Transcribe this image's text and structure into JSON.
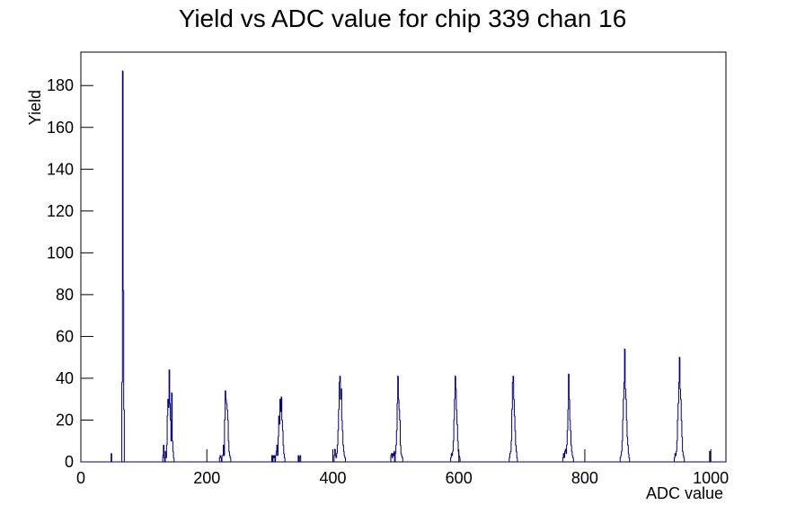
{
  "chart_data": {
    "type": "histogram",
    "title": "Yield vs ADC value for chip 339 chan 16",
    "x_label": "ADC value",
    "y_label": "Yield",
    "color": "#000080",
    "bins": [
      0,
      48,
      49,
      65,
      66,
      67,
      68,
      69,
      130,
      131,
      132,
      133,
      134,
      135,
      136,
      137,
      138,
      139,
      140,
      141,
      142,
      143,
      144,
      145,
      146,
      147,
      148,
      220,
      221,
      222,
      223,
      224,
      225,
      226,
      227,
      228,
      229,
      230,
      231,
      232,
      233,
      234,
      235,
      236,
      237,
      238,
      303,
      304,
      305,
      306,
      307,
      308,
      309,
      310,
      311,
      312,
      313,
      314,
      315,
      316,
      317,
      318,
      319,
      320,
      321,
      322,
      323,
      324,
      345,
      346,
      347,
      348,
      349,
      402,
      403,
      404,
      405,
      406,
      407,
      408,
      409,
      410,
      411,
      412,
      413,
      414,
      415,
      416,
      417,
      418,
      419,
      420,
      492,
      493,
      494,
      495,
      496,
      497,
      498,
      499,
      500,
      501,
      502,
      503,
      504,
      505,
      506,
      507,
      508,
      509,
      510,
      511,
      587,
      588,
      589,
      590,
      591,
      592,
      593,
      594,
      595,
      596,
      597,
      598,
      599,
      600,
      601,
      602,
      680,
      681,
      682,
      683,
      684,
      685,
      686,
      687,
      688,
      689,
      690,
      691,
      692,
      693,
      765,
      766,
      767,
      768,
      769,
      770,
      771,
      772,
      773,
      774,
      775,
      776,
      777,
      778,
      779,
      780,
      781,
      782,
      856,
      857,
      858,
      859,
      860,
      861,
      862,
      863,
      864,
      865,
      866,
      867,
      868,
      869,
      870,
      871,
      942,
      943,
      944,
      945,
      946,
      947,
      948,
      949,
      950,
      951,
      952,
      953,
      954,
      955,
      956,
      957,
      958,
      998,
      999,
      1024
    ],
    "counts": [
      0,
      4,
      0,
      38,
      187,
      82,
      25,
      0,
      3,
      8,
      2,
      0,
      5,
      2,
      8,
      22,
      30,
      26,
      44,
      28,
      20,
      10,
      33,
      10,
      5,
      2,
      0,
      2,
      3,
      2,
      0,
      3,
      3,
      8,
      3,
      20,
      34,
      30,
      28,
      25,
      20,
      10,
      5,
      3,
      2,
      0,
      3,
      0,
      3,
      2,
      3,
      0,
      3,
      5,
      8,
      3,
      12,
      22,
      18,
      30,
      24,
      31,
      20,
      15,
      8,
      4,
      2,
      0,
      3,
      0,
      2,
      3,
      0,
      3,
      6,
      3,
      2,
      4,
      8,
      15,
      25,
      38,
      41,
      30,
      35,
      20,
      15,
      8,
      5,
      3,
      2,
      0,
      3,
      4,
      2,
      4,
      3,
      5,
      0,
      4,
      8,
      15,
      28,
      41,
      30,
      25,
      20,
      8,
      4,
      3,
      2,
      0,
      2,
      4,
      3,
      5,
      10,
      20,
      30,
      41,
      35,
      25,
      18,
      10,
      5,
      3,
      2,
      0,
      2,
      4,
      5,
      10,
      25,
      38,
      41,
      30,
      22,
      15,
      8,
      5,
      2,
      0,
      2,
      4,
      2,
      5,
      6,
      4,
      8,
      15,
      25,
      42,
      30,
      20,
      15,
      8,
      5,
      3,
      2,
      0,
      2,
      3,
      5,
      10,
      20,
      30,
      38,
      54,
      35,
      30,
      20,
      12,
      8,
      4,
      2,
      0,
      2,
      4,
      3,
      5,
      10,
      20,
      28,
      38,
      50,
      35,
      30,
      20,
      12,
      5,
      3,
      2,
      0,
      5,
      0
    ],
    "xlim": [
      0,
      1024
    ],
    "ylim": [
      0,
      196
    ],
    "xticks": [
      0,
      200,
      400,
      600,
      800,
      1000
    ],
    "yticks": [
      0,
      20,
      40,
      60,
      80,
      100,
      120,
      140,
      160,
      180
    ]
  }
}
